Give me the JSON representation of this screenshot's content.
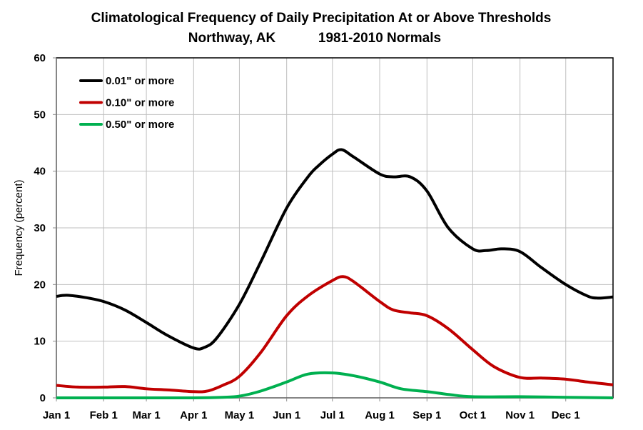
{
  "chart_data": {
    "type": "line",
    "title": "Climatological Frequency of Daily Precipitation At or Above Thresholds",
    "subtitle_left": "Northway, AK",
    "subtitle_right": "1981-2010 Normals",
    "xlabel": "",
    "ylabel": "Frequency (percent)",
    "ylim": [
      0,
      60
    ],
    "yticks": [
      0,
      10,
      20,
      30,
      40,
      50,
      60
    ],
    "xlim_day_of_year": [
      1,
      366
    ],
    "xticks": [
      {
        "label": "Jan 1",
        "day": 1
      },
      {
        "label": "Feb 1",
        "day": 32
      },
      {
        "label": "Mar 1",
        "day": 60
      },
      {
        "label": "Apr 1",
        "day": 91
      },
      {
        "label": "May 1",
        "day": 121
      },
      {
        "label": "Jun 1",
        "day": 152
      },
      {
        "label": "Jul 1",
        "day": 182
      },
      {
        "label": "Aug 1",
        "day": 213
      },
      {
        "label": "Sep 1",
        "day": 244
      },
      {
        "label": "Oct 1",
        "day": 274
      },
      {
        "label": "Nov 1",
        "day": 305
      },
      {
        "label": "Dec 1",
        "day": 335
      }
    ],
    "grid": true,
    "legend_position": "top-left",
    "series": [
      {
        "name": "0.01\" or more",
        "color": "#000000",
        "x": [
          1,
          8,
          20,
          32,
          46,
          60,
          74,
          91,
          98,
          106,
          121,
          135,
          152,
          166,
          173,
          182,
          188,
          196,
          213,
          222,
          233,
          244,
          258,
          274,
          283,
          293,
          305,
          319,
          335,
          349,
          356,
          366
        ],
        "y": [
          17.9,
          18.1,
          17.7,
          17.0,
          15.5,
          13.3,
          11.0,
          8.8,
          8.9,
          10.5,
          16.5,
          24.0,
          33.5,
          39.0,
          41.0,
          43.0,
          43.8,
          42.5,
          39.5,
          39.0,
          39.0,
          36.5,
          30.0,
          26.3,
          26.0,
          26.3,
          25.8,
          23.0,
          20.0,
          18.0,
          17.6,
          17.8
        ]
      },
      {
        "name": "0.10\" or more",
        "color": "#c00000",
        "x": [
          1,
          15,
          32,
          46,
          60,
          74,
          91,
          100,
          110,
          121,
          135,
          152,
          166,
          182,
          189,
          196,
          213,
          222,
          233,
          244,
          258,
          274,
          288,
          305,
          319,
          335,
          349,
          366
        ],
        "y": [
          2.2,
          1.9,
          1.9,
          2.0,
          1.6,
          1.4,
          1.1,
          1.2,
          2.2,
          3.8,
          8.0,
          14.5,
          18.0,
          20.7,
          21.4,
          20.5,
          17.0,
          15.5,
          15.0,
          14.5,
          12.2,
          8.5,
          5.5,
          3.6,
          3.5,
          3.3,
          2.8,
          2.3
        ]
      },
      {
        "name": "0.50\" or more",
        "color": "#00b050",
        "x": [
          1,
          60,
          91,
          110,
          121,
          135,
          152,
          166,
          182,
          196,
          213,
          227,
          244,
          258,
          274,
          305,
          335,
          366
        ],
        "y": [
          0.0,
          0.0,
          0.0,
          0.1,
          0.3,
          1.2,
          2.8,
          4.2,
          4.4,
          3.9,
          2.8,
          1.6,
          1.1,
          0.6,
          0.2,
          0.2,
          0.1,
          0.0
        ]
      }
    ]
  }
}
